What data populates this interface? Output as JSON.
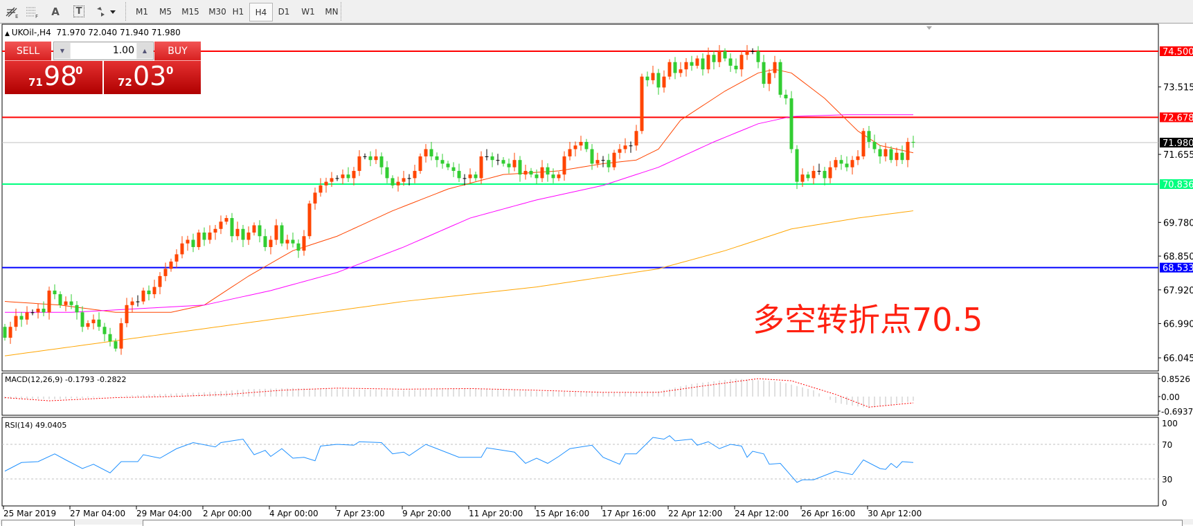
{
  "toolbar": {
    "tools": [
      {
        "icon": "fibonacci-expansion-icon"
      },
      {
        "icon": "fibonacci-fan-icon"
      },
      {
        "icon": "text-icon",
        "label": "A"
      },
      {
        "icon": "text-label-icon",
        "label": "T"
      },
      {
        "icon": "arrows-dropdown-icon"
      }
    ],
    "timeframes": [
      "M1",
      "M5",
      "M15",
      "M30",
      "H1",
      "H4",
      "D1",
      "W1",
      "MN"
    ],
    "active_timeframe": "H4"
  },
  "chart": {
    "symbol": "UKOil-,H4",
    "ohlc": "71.970 72.040 71.940 71.980"
  },
  "trade_panel": {
    "sell_label": "SELL",
    "buy_label": "BUY",
    "lots": "1.00",
    "sell_price": {
      "big": "71",
      "main": "98",
      "sup": "0"
    },
    "buy_price": {
      "big": "72",
      "main": "03",
      "sup": "0"
    }
  },
  "annotation": "多空转折点70.5",
  "colors": {
    "bull": "#ff4500",
    "bear": "#32cd32",
    "ma_fast": "#ff4500",
    "ma_mid": "#ff00ff",
    "ma_slow": "#ffa500",
    "rsi": "#1e90ff",
    "macd_hist": "#c0c0c0",
    "macd_signal": "#ff0000"
  },
  "chart_data": {
    "type": "candlestick",
    "symbol": "UKOil-",
    "timeframe": "H4",
    "price_axis_ticks": [
      "73.515",
      "71.655",
      "69.780",
      "68.850",
      "67.920",
      "66.990",
      "66.045"
    ],
    "ylim": [
      66.045,
      74.5
    ],
    "x_tick_labels": [
      "25 Mar 2019",
      "27 Mar 04:00",
      "29 Mar 04:00",
      "2 Apr 00:00",
      "4 Apr 00:00",
      "7 Apr 23:00",
      "9 Apr 20:00",
      "11 Apr 20:00",
      "15 Apr 16:00",
      "17 Apr 16:00",
      "22 Apr 12:00",
      "24 Apr 12:00",
      "26 Apr 16:00",
      "30 Apr 12:00"
    ],
    "bars_per_x_label": 12,
    "horizontal_lines": [
      {
        "price": 74.5,
        "label": "74.500",
        "color": "#ff0000"
      },
      {
        "price": 72.678,
        "label": "72.678",
        "color": "#ff0000"
      },
      {
        "price": 71.98,
        "label": "71.980",
        "color": "#000000",
        "line_color": "#c0c0c0"
      },
      {
        "price": 70.836,
        "label": "70.836",
        "color": "#00ff7f"
      },
      {
        "price": 68.533,
        "label": "68.533",
        "color": "#0000ff"
      }
    ],
    "first_open": 66.9,
    "closes": [
      66.6,
      66.9,
      67.2,
      67.1,
      67.3,
      67.3,
      67.4,
      67.3,
      67.9,
      67.8,
      67.5,
      67.6,
      67.5,
      67.3,
      66.9,
      67.0,
      67.1,
      66.9,
      66.7,
      66.5,
      66.3,
      67.0,
      67.5,
      67.6,
      67.6,
      67.9,
      67.8,
      68.0,
      68.3,
      68.5,
      68.7,
      68.9,
      69.2,
      69.3,
      69.1,
      69.5,
      69.3,
      69.5,
      69.6,
      69.8,
      69.9,
      69.4,
      69.6,
      69.3,
      69.5,
      69.7,
      69.4,
      69.1,
      69.3,
      69.7,
      69.2,
      69.3,
      69.2,
      69.0,
      69.4,
      70.3,
      70.6,
      70.8,
      70.9,
      71.0,
      71.0,
      71.1,
      71.0,
      71.2,
      71.6,
      71.6,
      71.5,
      71.6,
      71.3,
      71.0,
      70.8,
      70.9,
      71.0,
      71.0,
      71.2,
      71.6,
      71.8,
      71.6,
      71.5,
      71.4,
      71.3,
      71.2,
      71.0,
      71.0,
      71.1,
      71.0,
      71.6,
      71.6,
      71.5,
      71.5,
      71.4,
      71.3,
      71.5,
      71.1,
      71.2,
      71.1,
      71.0,
      71.3,
      71.1,
      71.0,
      71.1,
      71.6,
      71.8,
      71.9,
      72.0,
      71.8,
      71.4,
      71.5,
      71.5,
      71.3,
      71.7,
      71.8,
      71.9,
      71.9,
      72.3,
      73.8,
      73.7,
      73.9,
      73.5,
      73.8,
      74.2,
      73.9,
      74.0,
      74.2,
      74.1,
      74.3,
      74.0,
      74.4,
      74.2,
      74.5,
      74.3,
      74.1,
      74.0,
      74.4,
      74.5,
      74.5,
      74.2,
      73.6,
      73.9,
      74.2,
      73.3,
      73.2,
      71.8,
      70.9,
      71.1,
      71.0,
      71.2,
      71.2,
      71.0,
      71.3,
      71.5,
      71.4,
      71.3,
      71.5,
      71.6,
      72.3,
      72.0,
      71.8,
      71.6,
      71.8,
      71.5,
      71.7,
      71.5,
      72.0,
      71.98
    ],
    "moving_averages": [
      {
        "role": "fast",
        "points": [
          [
            0,
            67.6
          ],
          [
            10,
            67.5
          ],
          [
            20,
            67.3
          ],
          [
            30,
            67.3
          ],
          [
            36,
            67.5
          ],
          [
            44,
            68.3
          ],
          [
            52,
            69.0
          ],
          [
            60,
            69.4
          ],
          [
            70,
            70.1
          ],
          [
            80,
            70.7
          ],
          [
            90,
            71.1
          ],
          [
            100,
            71.2
          ],
          [
            108,
            71.4
          ],
          [
            114,
            71.5
          ],
          [
            118,
            71.8
          ],
          [
            122,
            72.6
          ],
          [
            130,
            73.4
          ],
          [
            136,
            73.9
          ],
          [
            139,
            74.0
          ],
          [
            142,
            73.9
          ],
          [
            148,
            73.2
          ],
          [
            154,
            72.3
          ],
          [
            158,
            71.9
          ],
          [
            164,
            71.7
          ]
        ]
      },
      {
        "role": "mid",
        "points": [
          [
            0,
            67.3
          ],
          [
            12,
            67.3
          ],
          [
            24,
            67.4
          ],
          [
            36,
            67.5
          ],
          [
            48,
            67.9
          ],
          [
            60,
            68.4
          ],
          [
            72,
            69.1
          ],
          [
            84,
            69.9
          ],
          [
            96,
            70.4
          ],
          [
            108,
            70.8
          ],
          [
            118,
            71.3
          ],
          [
            128,
            72.0
          ],
          [
            136,
            72.5
          ],
          [
            142,
            72.7
          ],
          [
            152,
            72.75
          ],
          [
            164,
            72.75
          ]
        ]
      },
      {
        "role": "slow",
        "points": [
          [
            0,
            66.1
          ],
          [
            24,
            66.6
          ],
          [
            48,
            67.1
          ],
          [
            72,
            67.6
          ],
          [
            96,
            68.0
          ],
          [
            118,
            68.5
          ],
          [
            130,
            69.0
          ],
          [
            142,
            69.6
          ],
          [
            154,
            69.9
          ],
          [
            164,
            70.1
          ]
        ]
      }
    ],
    "macd": {
      "label": "MACD(12,26,9) -0.1793 -0.2822",
      "ticks": [
        "0.8526",
        "0.00",
        "-0.6937"
      ],
      "ylim": [
        -0.6937,
        0.8526
      ],
      "histogram": [
        [
          0,
          -0.1
        ],
        [
          10,
          -0.12
        ],
        [
          20,
          0.02
        ],
        [
          28,
          0.12
        ],
        [
          36,
          0.2
        ],
        [
          44,
          0.35
        ],
        [
          52,
          0.4
        ],
        [
          60,
          0.35
        ],
        [
          72,
          0.3
        ],
        [
          84,
          0.38
        ],
        [
          96,
          0.25
        ],
        [
          108,
          0.2
        ],
        [
          118,
          0.25
        ],
        [
          124,
          0.6
        ],
        [
          132,
          0.85
        ],
        [
          140,
          0.7
        ],
        [
          146,
          0.3
        ],
        [
          150,
          -0.3
        ],
        [
          156,
          -0.55
        ],
        [
          160,
          -0.4
        ],
        [
          164,
          -0.2
        ]
      ],
      "signal": [
        [
          0,
          -0.05
        ],
        [
          8,
          -0.2
        ],
        [
          20,
          -0.05
        ],
        [
          30,
          0.0
        ],
        [
          40,
          0.1
        ],
        [
          50,
          0.3
        ],
        [
          60,
          0.4
        ],
        [
          72,
          0.35
        ],
        [
          84,
          0.38
        ],
        [
          96,
          0.3
        ],
        [
          108,
          0.2
        ],
        [
          118,
          0.2
        ],
        [
          126,
          0.5
        ],
        [
          136,
          0.85
        ],
        [
          142,
          0.75
        ],
        [
          150,
          0.1
        ],
        [
          156,
          -0.5
        ],
        [
          160,
          -0.4
        ],
        [
          164,
          -0.3
        ]
      ]
    },
    "rsi": {
      "label": "RSI(14) 49.0405",
      "ticks": [
        "100",
        "70",
        "30",
        "0"
      ],
      "levels": [
        70,
        30
      ],
      "ylim": [
        0,
        100
      ],
      "points": [
        [
          0,
          39
        ],
        [
          3,
          49
        ],
        [
          6,
          50
        ],
        [
          9,
          59
        ],
        [
          11,
          52
        ],
        [
          14,
          42
        ],
        [
          16,
          47
        ],
        [
          19,
          37
        ],
        [
          21,
          50
        ],
        [
          24,
          50
        ],
        [
          25,
          58
        ],
        [
          28,
          54
        ],
        [
          31,
          65
        ],
        [
          34,
          72
        ],
        [
          38,
          67
        ],
        [
          39,
          72
        ],
        [
          43,
          76
        ],
        [
          45,
          58
        ],
        [
          47,
          63
        ],
        [
          48,
          56
        ],
        [
          50,
          65
        ],
        [
          52,
          54
        ],
        [
          54,
          55
        ],
        [
          56,
          51
        ],
        [
          57,
          68
        ],
        [
          60,
          70
        ],
        [
          63,
          69
        ],
        [
          64,
          73
        ],
        [
          68,
          72
        ],
        [
          70,
          59
        ],
        [
          72,
          61
        ],
        [
          73,
          57
        ],
        [
          76,
          70
        ],
        [
          78,
          65
        ],
        [
          82,
          55
        ],
        [
          86,
          55
        ],
        [
          87,
          66
        ],
        [
          89,
          64
        ],
        [
          92,
          61
        ],
        [
          94,
          48
        ],
        [
          96,
          54
        ],
        [
          98,
          48
        ],
        [
          100,
          56
        ],
        [
          102,
          65
        ],
        [
          106,
          69
        ],
        [
          108,
          55
        ],
        [
          111,
          47
        ],
        [
          112,
          59
        ],
        [
          114,
          59
        ],
        [
          117,
          78
        ],
        [
          119,
          76
        ],
        [
          120,
          80
        ],
        [
          121,
          74
        ],
        [
          124,
          76
        ],
        [
          125,
          69
        ],
        [
          127,
          73
        ],
        [
          129,
          65
        ],
        [
          131,
          70
        ],
        [
          133,
          68
        ],
        [
          134,
          55
        ],
        [
          135,
          62
        ],
        [
          137,
          59
        ],
        [
          138,
          47
        ],
        [
          140,
          48
        ],
        [
          143,
          26
        ],
        [
          144,
          29
        ],
        [
          146,
          29
        ],
        [
          150,
          39
        ],
        [
          153,
          35
        ],
        [
          155,
          52
        ],
        [
          158,
          42
        ],
        [
          159,
          41
        ],
        [
          160,
          48
        ],
        [
          161,
          43
        ],
        [
          162,
          50
        ],
        [
          164,
          49
        ]
      ]
    }
  }
}
